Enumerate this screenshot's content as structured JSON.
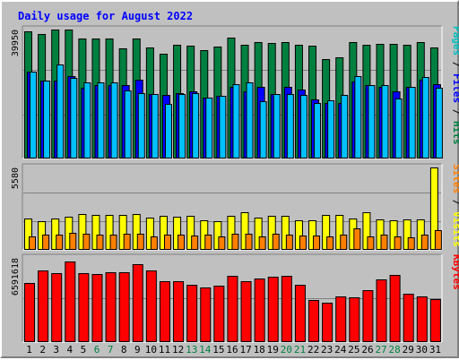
{
  "chart_data": {
    "title": "Daily usage for August 2022",
    "type": "bar",
    "days": [
      "1",
      "2",
      "3",
      "4",
      "5",
      "6",
      "7",
      "8",
      "9",
      "10",
      "11",
      "12",
      "13",
      "14",
      "15",
      "16",
      "17",
      "18",
      "19",
      "20",
      "21",
      "22",
      "23",
      "24",
      "25",
      "26",
      "27",
      "28",
      "29",
      "30",
      "31"
    ],
    "weekend_days": [
      "6",
      "7",
      "13",
      "14",
      "20",
      "21",
      "27",
      "28"
    ],
    "grid": true,
    "panels": [
      {
        "id": "hits",
        "ymax_label": "39950",
        "ymax": 39950,
        "legend": [
          {
            "text": "Pages",
            "color": "#00c0c0"
          },
          {
            "text": " / ",
            "color": "#000000"
          },
          {
            "text": "Files",
            "color": "#0000ff"
          },
          {
            "text": " / ",
            "color": "#000000"
          },
          {
            "text": "Hits",
            "color": "#008040"
          }
        ],
        "series": [
          {
            "name": "Hits",
            "color": "#008040",
            "values": [
              39300,
              38500,
              40000,
              40000,
              37300,
              37100,
              37300,
              34000,
              37300,
              34300,
              32400,
              35100,
              35000,
              33700,
              34800,
              37400,
              35300,
              36100,
              35800,
              36000,
              35300,
              34900,
              30800,
              31400,
              36100,
              35300,
              35500,
              35500,
              35300,
              36100,
              34500
            ]
          },
          {
            "name": "Files",
            "color": "#0000ff",
            "values": [
              27000,
              24000,
              24000,
              25500,
              22000,
              22800,
              22800,
              22800,
              24500,
              20000,
              19800,
              20200,
              20800,
              18800,
              19300,
              22300,
              20800,
              22300,
              20000,
              22300,
              21500,
              18300,
              17300,
              17300,
              23800,
              22800,
              22300,
              20800,
              22300,
              24300,
              23000
            ]
          },
          {
            "name": "Pages",
            "color": "#00c0ff",
            "values": [
              27000,
              24000,
              29000,
              25000,
              23700,
              23700,
              23700,
              21200,
              20200,
              20000,
              16800,
              20000,
              20200,
              18800,
              19300,
              23000,
              23600,
              17800,
              20000,
              20000,
              19800,
              17300,
              18000,
              19800,
              25600,
              22800,
              22800,
              18500,
              22300,
              25300,
              22000
            ]
          }
        ]
      },
      {
        "id": "visits",
        "ymax_label": "5580",
        "ymax": 5580,
        "legend": [
          {
            "text": "Sites",
            "color": "#ff8000"
          },
          {
            "text": " / ",
            "color": "#000000"
          },
          {
            "text": "Visits",
            "color": "#ffff00"
          }
        ],
        "series": [
          {
            "name": "Visits",
            "color": "#ffff00",
            "values": [
              2140,
              1960,
              2150,
              2230,
              2420,
              2360,
              2360,
              2360,
              2440,
              2180,
              2290,
              2230,
              2290,
              2020,
              1930,
              2290,
              2560,
              2200,
              2320,
              2330,
              2030,
              1980,
              2360,
              2390,
              2110,
              2550,
              2080,
              2030,
              2050,
              2050,
              5580
            ]
          },
          {
            "name": "Sites",
            "color": "#ff8000",
            "values": [
              890,
              1060,
              1010,
              1130,
              1120,
              1040,
              1030,
              1100,
              1120,
              930,
              1050,
              1010,
              1000,
              1060,
              890,
              1110,
              1120,
              900,
              1110,
              1010,
              1000,
              980,
              920,
              1040,
              1480,
              910,
              1030,
              900,
              840,
              1020,
              1330
            ]
          }
        ]
      },
      {
        "id": "kbytes",
        "ymax_label": "6591618",
        "ymax": 6591618,
        "legend": [
          {
            "text": "KBytes",
            "color": "#ff0000"
          }
        ],
        "series": [
          {
            "name": "KBytes",
            "color": "#ff0000",
            "values": [
              4650000,
              5600000,
              5400000,
              6300000,
              5400000,
              5300000,
              5500000,
              5500000,
              6100000,
              5600000,
              4800000,
              4750000,
              4500000,
              4250000,
              4400000,
              5200000,
              4800000,
              5000000,
              5100000,
              5200000,
              4500000,
              3300000,
              3100000,
              3600000,
              3500000,
              4050000,
              4900000,
              5250000,
              3800000,
              3600000,
              3350000
            ]
          }
        ]
      }
    ]
  }
}
